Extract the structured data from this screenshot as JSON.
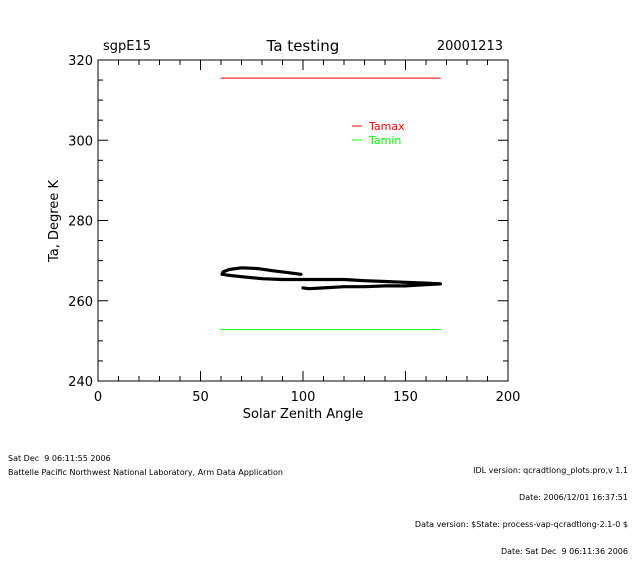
{
  "chart_data": {
    "type": "line",
    "site": "sgpE15",
    "title": "Ta testing",
    "date": "20001213",
    "xlabel": "Solar Zenith Angle",
    "ylabel": "Ta, Degree K",
    "xlim": [
      0,
      200
    ],
    "ylim": [
      240,
      320
    ],
    "xticks": [
      0,
      50,
      100,
      150,
      200
    ],
    "yticks": [
      240,
      260,
      280,
      300,
      320
    ],
    "legend_position": "top-right",
    "legend": [
      {
        "label": "Tamax",
        "color": "#ff0000"
      },
      {
        "label": "Tamin",
        "color": "#00ff00"
      }
    ],
    "series": [
      {
        "name": "Tamax",
        "color": "#ff0000",
        "stroke": "thin",
        "points": [
          [
            60,
            315.5
          ],
          [
            167,
            315.5
          ]
        ]
      },
      {
        "name": "Tamin",
        "color": "#00ff00",
        "stroke": "thin",
        "points": [
          [
            60,
            252.8
          ],
          [
            167,
            252.8
          ]
        ]
      },
      {
        "color": "#000000",
        "stroke": "thick",
        "points": [
          [
            99,
            266.6
          ],
          [
            93,
            267.0
          ],
          [
            85,
            267.5
          ],
          [
            78,
            268.0
          ],
          [
            70,
            268.2
          ],
          [
            64,
            267.8
          ],
          [
            61,
            267.2
          ],
          [
            60.5,
            266.6
          ],
          [
            63,
            266.4
          ],
          [
            70,
            266.0
          ],
          [
            80,
            265.5
          ],
          [
            90,
            265.3
          ],
          [
            100,
            265.3
          ],
          [
            110,
            265.3
          ],
          [
            120,
            265.3
          ],
          [
            130,
            265.0
          ],
          [
            140,
            264.8
          ],
          [
            150,
            264.6
          ],
          [
            160,
            264.4
          ],
          [
            167,
            264.2
          ]
        ]
      },
      {
        "color": "#000000",
        "stroke": "thick",
        "points": [
          [
            167,
            264.2
          ],
          [
            160,
            264.0
          ],
          [
            150,
            263.7
          ],
          [
            140,
            263.7
          ],
          [
            130,
            263.5
          ],
          [
            120,
            263.5
          ],
          [
            110,
            263.2
          ],
          [
            103,
            263.0
          ],
          [
            100,
            263.2
          ]
        ]
      }
    ]
  },
  "footer": {
    "left_timestamp": "Sat Dec  9 06:11:55 2006",
    "left_org": "Battelle Pacific Northwest National Laboratory, Arm Data Application",
    "right_lines": [
      "IDL version: qcradtlong_plots.pro,v 1.1",
      "Date: 2006/12/01 16:37:51",
      "Data version: $State: process-vap-qcradtlong-2.1-0 $",
      "Date: Sat Dec  9 06:11:36 2006"
    ]
  }
}
